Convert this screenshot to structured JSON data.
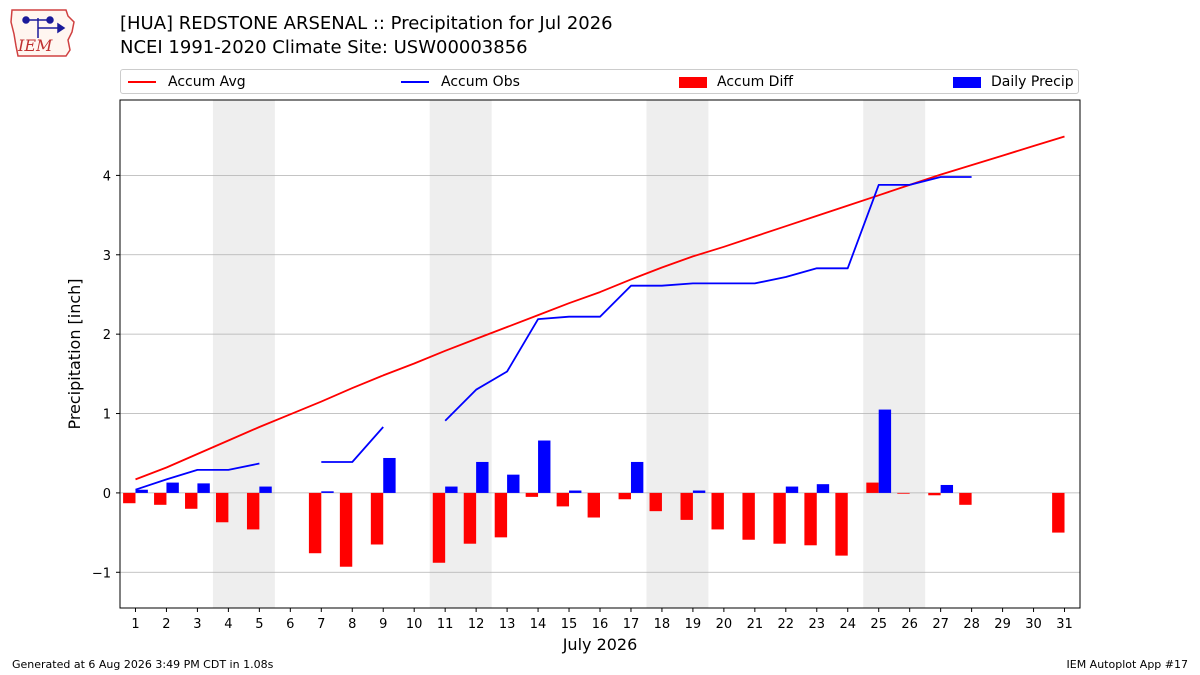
{
  "header": {
    "title_line1": "[HUA] REDSTONE ARSENAL :: Precipitation for Jul 2026",
    "title_line2": "NCEI 1991-2020 Climate Site: USW00003856",
    "logo_text": "IEM"
  },
  "legend": {
    "accum_avg": "Accum Avg",
    "accum_obs": "Accum Obs",
    "accum_diff": "Accum Diff",
    "daily_precip": "Daily Precip"
  },
  "colors": {
    "accum_avg": "#ff0000",
    "accum_obs": "#0000ff",
    "accum_diff": "#ff0000",
    "daily_precip": "#0000ff",
    "weekend_shade": "#eeeeee",
    "grid": "#b0b0b0"
  },
  "footer": {
    "left": "Generated at 6 Aug 2026 3:49 PM CDT in 1.08s",
    "right": "IEM Autoplot App #17"
  },
  "chart_data": {
    "type": "bar",
    "xlabel": "July 2026",
    "ylabel": "Precipitation [inch]",
    "xlim": [
      0.5,
      31.5
    ],
    "ylim": [
      -1.45,
      4.95
    ],
    "yticks": [
      -1,
      0,
      1,
      2,
      3,
      4
    ],
    "ytick_labels": [
      "−1",
      "0",
      "1",
      "2",
      "3",
      "4"
    ],
    "grid": "horizontal",
    "legend_placement": "top",
    "days": [
      1,
      2,
      3,
      4,
      5,
      6,
      7,
      8,
      9,
      10,
      11,
      12,
      13,
      14,
      15,
      16,
      17,
      18,
      19,
      20,
      21,
      22,
      23,
      24,
      25,
      26,
      27,
      28,
      29,
      30,
      31
    ],
    "shaded_days": [
      [
        4,
        5
      ],
      [
        11,
        12
      ],
      [
        18,
        19
      ],
      [
        25,
        26
      ]
    ],
    "series": [
      {
        "name": "Accum Avg",
        "type": "line",
        "values": [
          0.17,
          0.32,
          0.49,
          0.66,
          0.83,
          0.99,
          1.15,
          1.32,
          1.48,
          1.63,
          1.79,
          1.94,
          2.09,
          2.24,
          2.39,
          2.53,
          2.69,
          2.84,
          2.98,
          3.1,
          3.23,
          3.36,
          3.49,
          3.62,
          3.75,
          3.88,
          4.01,
          4.13,
          4.25,
          4.37,
          4.49
        ]
      },
      {
        "name": "Accum Obs",
        "type": "line",
        "values": [
          0.04,
          0.17,
          0.29,
          0.29,
          0.37,
          null,
          0.39,
          0.39,
          0.83,
          null,
          0.91,
          1.3,
          1.53,
          2.19,
          2.22,
          2.22,
          2.61,
          2.61,
          2.64,
          2.64,
          2.64,
          2.72,
          2.83,
          2.83,
          3.88,
          3.88,
          3.98,
          3.98,
          null,
          null,
          null
        ]
      },
      {
        "name": "Accum Diff",
        "type": "bar",
        "values": [
          -0.13,
          -0.15,
          -0.2,
          -0.37,
          -0.46,
          null,
          -0.76,
          -0.93,
          -0.65,
          null,
          -0.88,
          -0.64,
          -0.56,
          -0.05,
          -0.17,
          -0.31,
          -0.08,
          -0.23,
          -0.34,
          -0.46,
          -0.59,
          -0.64,
          -0.66,
          -0.79,
          0.13,
          0.0,
          -0.03,
          -0.15,
          null,
          null,
          -0.5
        ]
      },
      {
        "name": "Daily Precip",
        "type": "bar",
        "values": [
          0.04,
          0.13,
          0.12,
          0,
          0.08,
          null,
          0.02,
          0,
          0.44,
          null,
          0.08,
          0.39,
          0.23,
          0.66,
          0.03,
          0,
          0.39,
          0,
          0.03,
          0,
          0,
          0.08,
          0.11,
          0,
          1.05,
          0,
          0.1,
          0,
          null,
          null,
          null
        ]
      }
    ]
  }
}
